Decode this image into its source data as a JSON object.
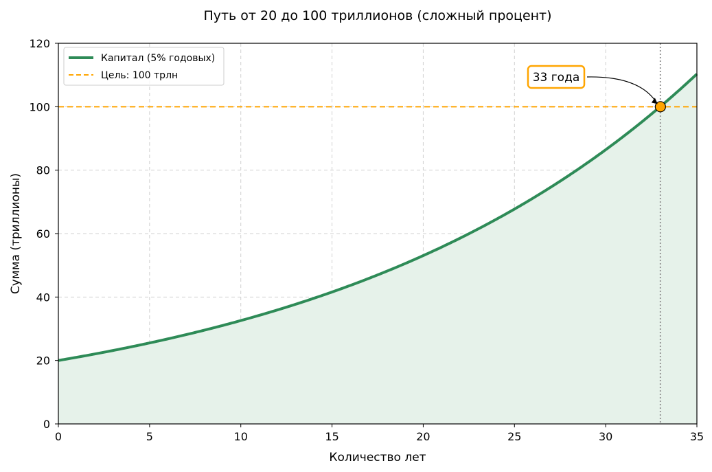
{
  "chart_data": {
    "type": "line",
    "title": "Путь от 20 до 100 триллионов (сложный процент)",
    "xlabel": "Количество лет",
    "ylabel": "Сумма (триллионы)",
    "xlim": [
      0,
      35
    ],
    "ylim": [
      0,
      120
    ],
    "xticks": [
      0,
      5,
      10,
      15,
      20,
      25,
      30,
      35
    ],
    "yticks": [
      0,
      20,
      40,
      60,
      80,
      100,
      120
    ],
    "grid": true,
    "legend_position": "top-left",
    "series": [
      {
        "name": "Капитал (5% годовых)",
        "kind": "line",
        "color": "#2e8b57",
        "fill_color": "#e6f2ea",
        "initial": 20,
        "rate": 0.05,
        "x": [
          0,
          5,
          10,
          15,
          20,
          25,
          30,
          33,
          35
        ],
        "y": [
          20,
          25.53,
          32.58,
          41.58,
          53.07,
          67.73,
          86.44,
          100.06,
          110.32
        ]
      },
      {
        "name": "Цель: 100 трлн",
        "kind": "hline",
        "color": "#ffa500",
        "y": 100
      }
    ],
    "vline": {
      "x": 33,
      "color": "#999999"
    },
    "annotation": {
      "text": "33 года",
      "point": {
        "x": 33,
        "y": 100
      },
      "marker_color": "#ffa500",
      "box_edge_color": "#ffa500"
    }
  }
}
